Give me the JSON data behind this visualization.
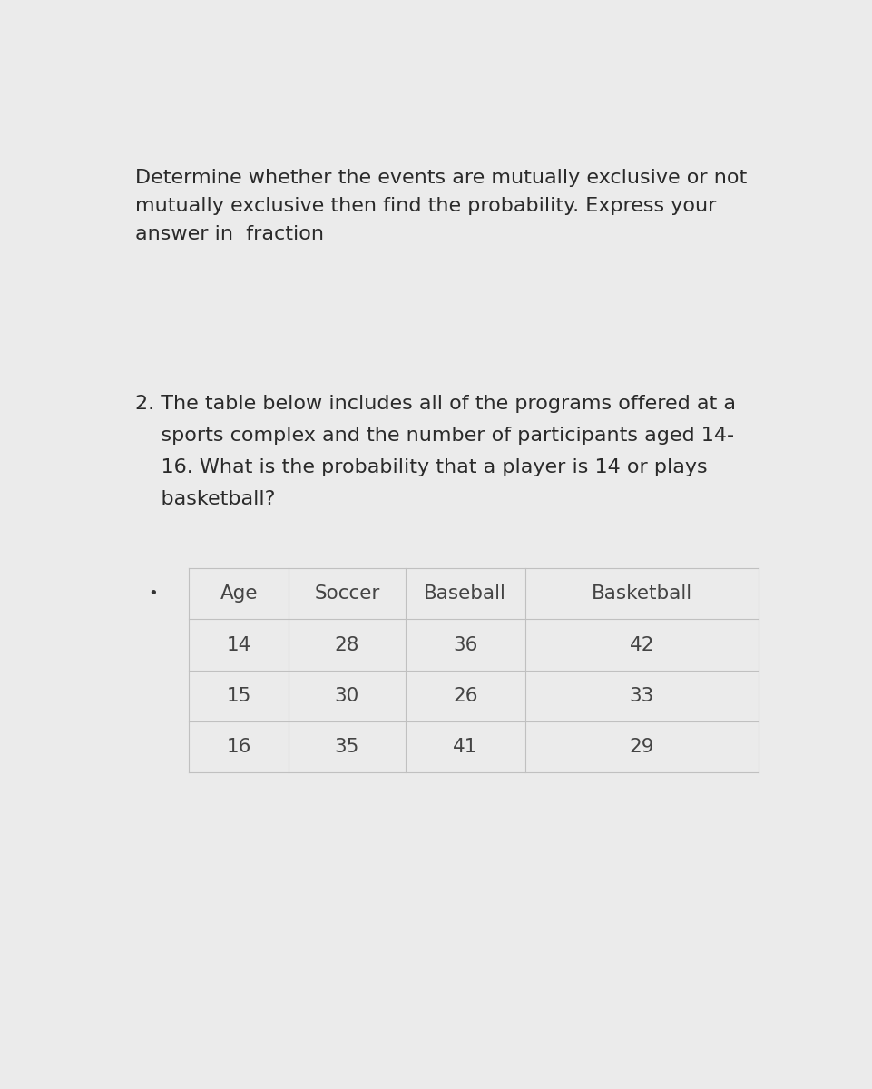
{
  "page_background": "#ebebeb",
  "header_text_line1": "Determine whether the events are mutually exclusive or not",
  "header_text_line2": "mutually exclusive then find the probability. Express your",
  "header_text_line3": "answer in  fraction",
  "header_fontsize": 16,
  "header_color": "#2a2a2a",
  "question_line1": "2. The table below includes all of the programs offered at a",
  "question_line2": "    sports complex and the number of participants aged 14-",
  "question_line3": "    16. What is the probability that a player is 14 or plays",
  "question_line4": "    basketball?",
  "question_fontsize": 16,
  "question_color": "#2a2a2a",
  "col_headers": [
    "Age",
    "Soccer",
    "Baseball",
    "Basketball"
  ],
  "col_header_fontsize": 15.5,
  "row_data": [
    [
      "14",
      "28",
      "36",
      "42"
    ],
    [
      "15",
      "30",
      "26",
      "33"
    ],
    [
      "16",
      "35",
      "41",
      "29"
    ]
  ],
  "row_fontsize": 15.5,
  "line_color": "#c0c0c0",
  "text_color": "#444444",
  "bullet_color": "#333333"
}
